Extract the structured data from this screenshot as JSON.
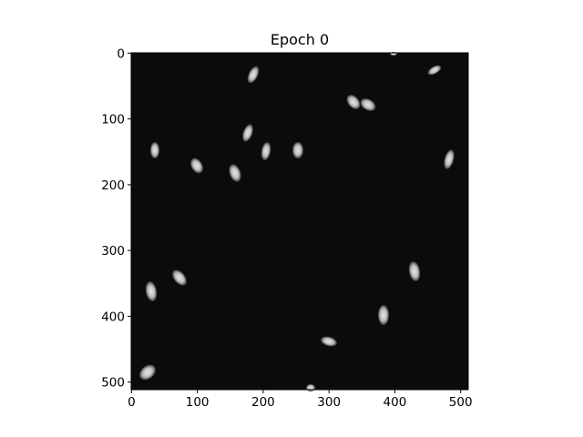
{
  "chart_data": {
    "type": "image",
    "title": "Epoch 0",
    "xlim": [
      -0.5,
      511.5
    ],
    "ylim": [
      511.5,
      -0.5
    ],
    "xticks": [
      0,
      100,
      200,
      300,
      400,
      500
    ],
    "yticks": [
      0,
      100,
      200,
      300,
      400,
      500
    ]
  }
}
